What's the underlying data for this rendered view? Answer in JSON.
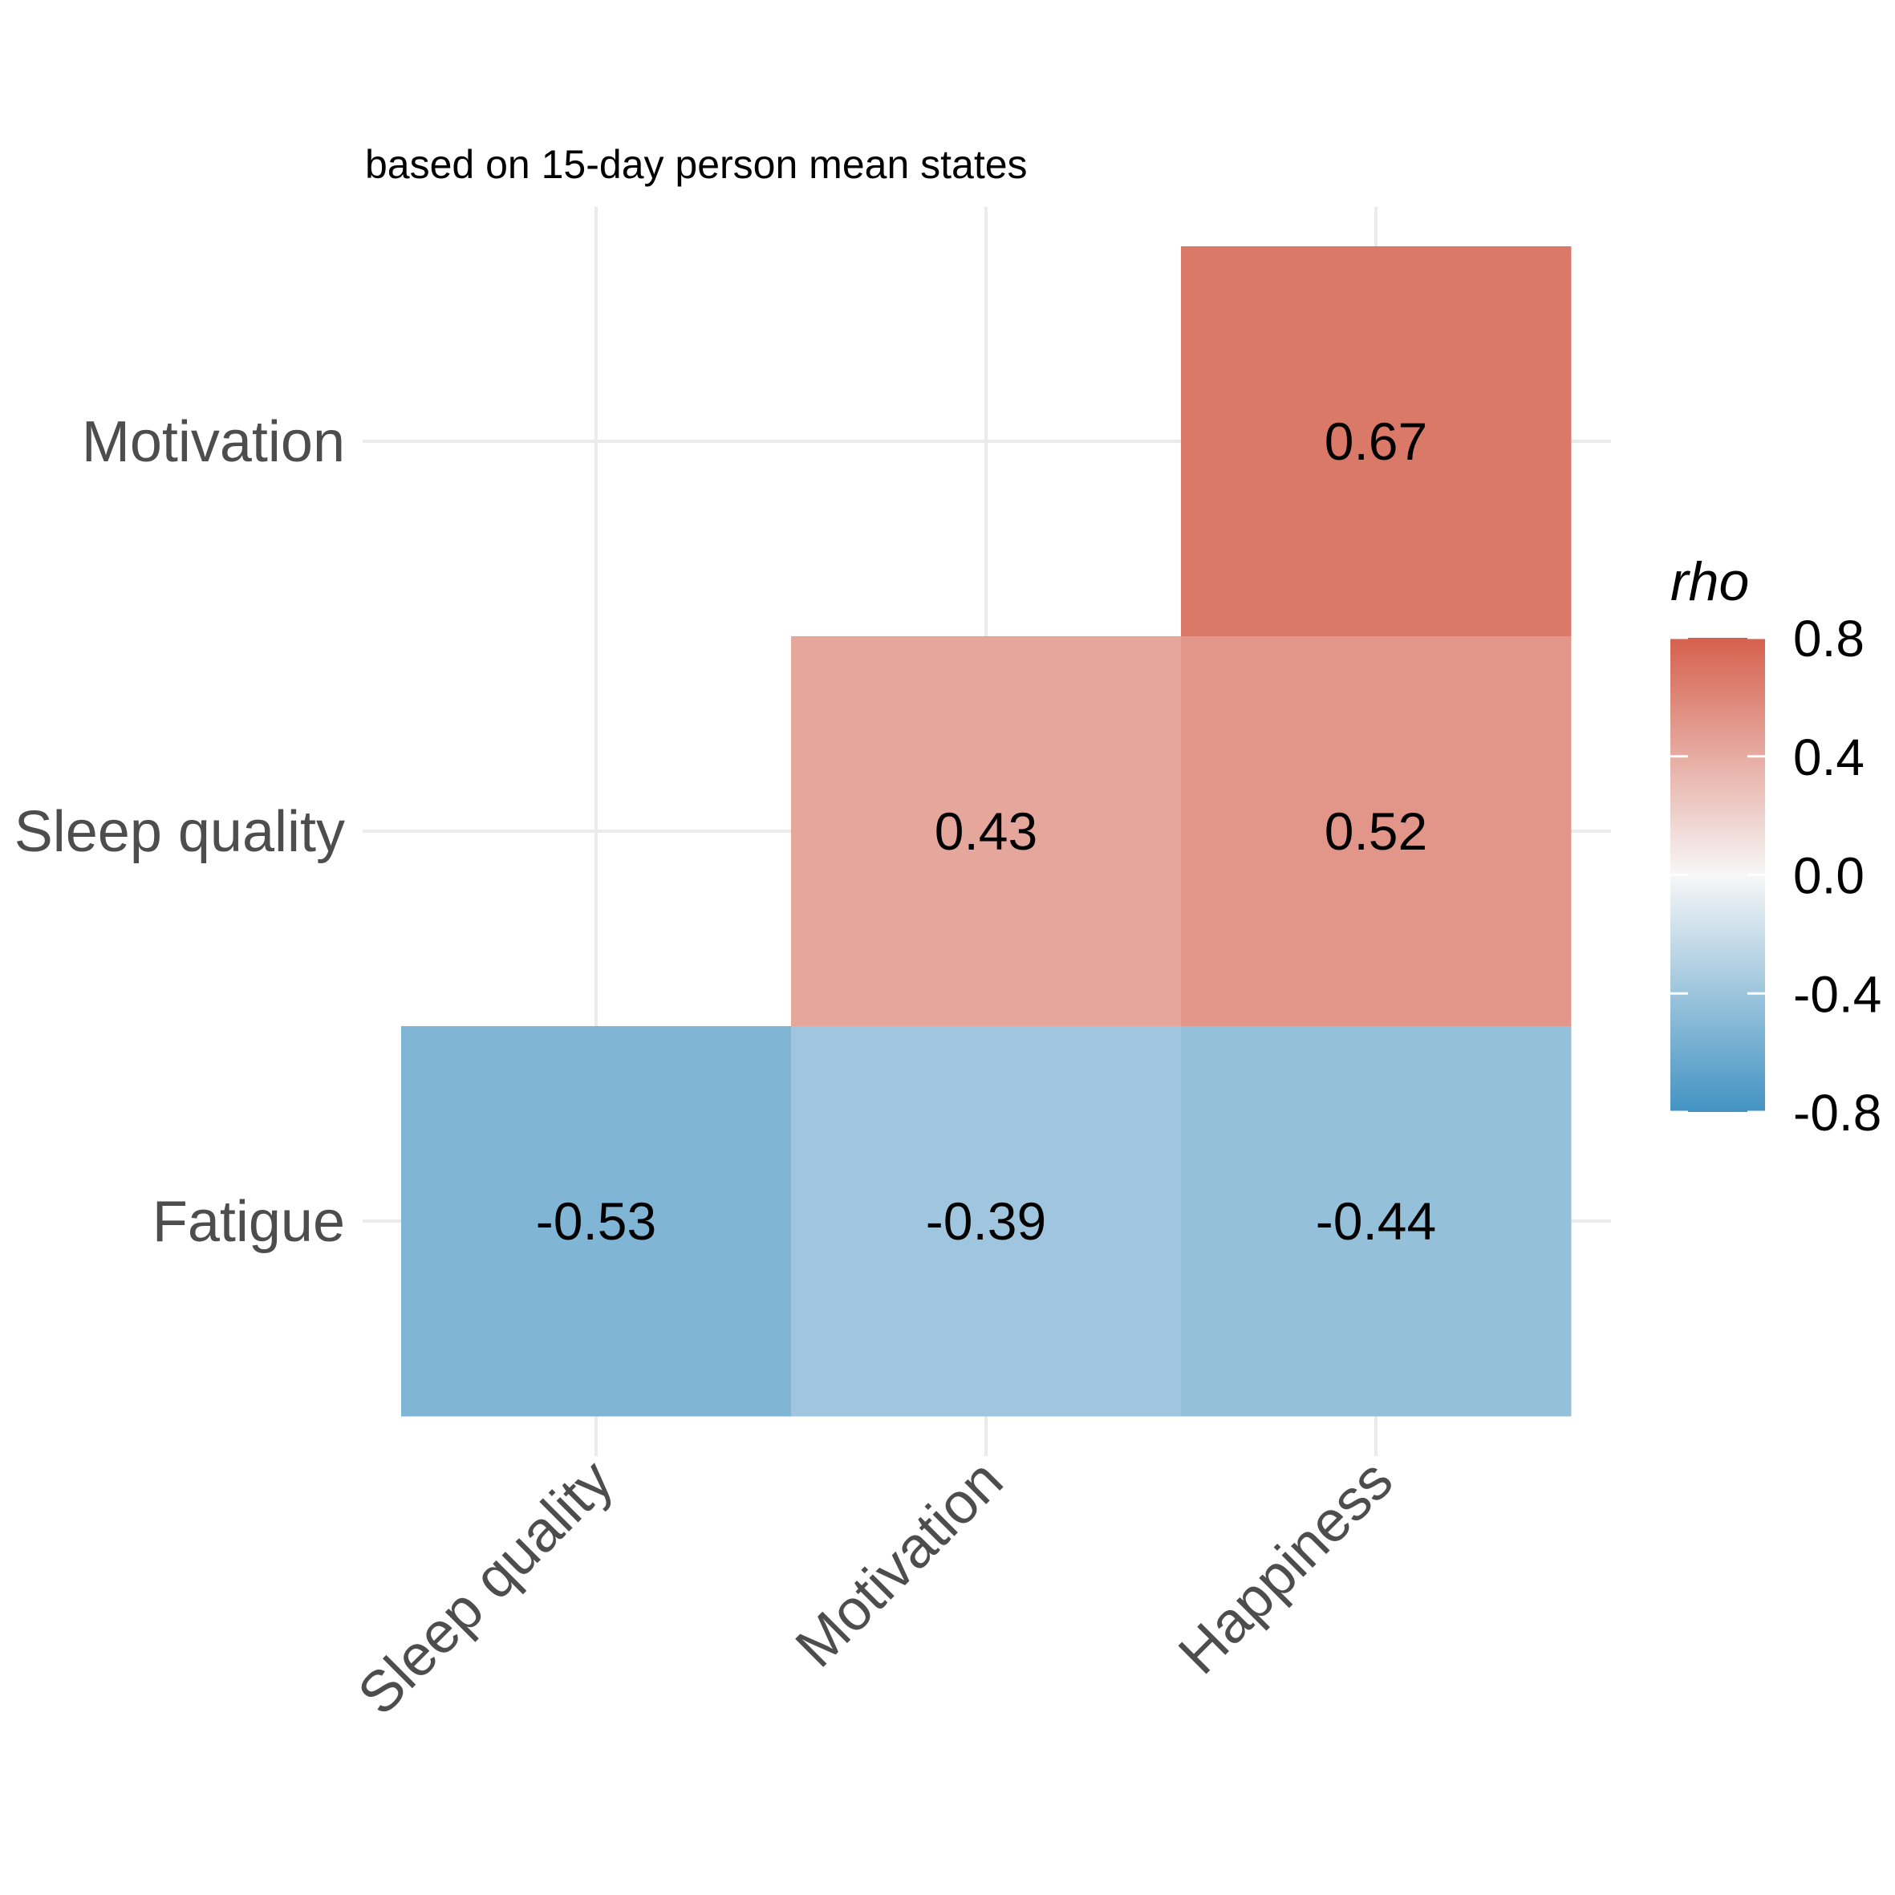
{
  "chart_data": {
    "type": "heatmap",
    "subtitle": "based on 15-day person mean states",
    "x_categories": [
      "Sleep quality",
      "Motivation",
      "Happiness"
    ],
    "y_categories": [
      "Motivation",
      "Sleep quality",
      "Fatigue"
    ],
    "cells": [
      {
        "row": "Motivation",
        "col": "Happiness",
        "value": 0.67,
        "label": "0.67"
      },
      {
        "row": "Sleep quality",
        "col": "Motivation",
        "value": 0.43,
        "label": "0.43"
      },
      {
        "row": "Sleep quality",
        "col": "Happiness",
        "value": 0.52,
        "label": "0.52"
      },
      {
        "row": "Fatigue",
        "col": "Sleep quality",
        "value": -0.53,
        "label": "-0.53"
      },
      {
        "row": "Fatigue",
        "col": "Motivation",
        "value": -0.39,
        "label": "-0.39"
      },
      {
        "row": "Fatigue",
        "col": "Happiness",
        "value": -0.44,
        "label": "-0.44"
      }
    ],
    "legend": {
      "title": "rho",
      "range": [
        -0.8,
        0.8
      ],
      "ticks": [
        0.8,
        0.4,
        0.0,
        -0.4,
        -0.8
      ],
      "tick_labels": [
        "0.8",
        "0.4",
        "0.0",
        "-0.4",
        "-0.8"
      ],
      "colors": {
        "low": "#4393c3",
        "mid": "#f7f7f7",
        "high": "#d6604d"
      }
    },
    "grid": true
  }
}
